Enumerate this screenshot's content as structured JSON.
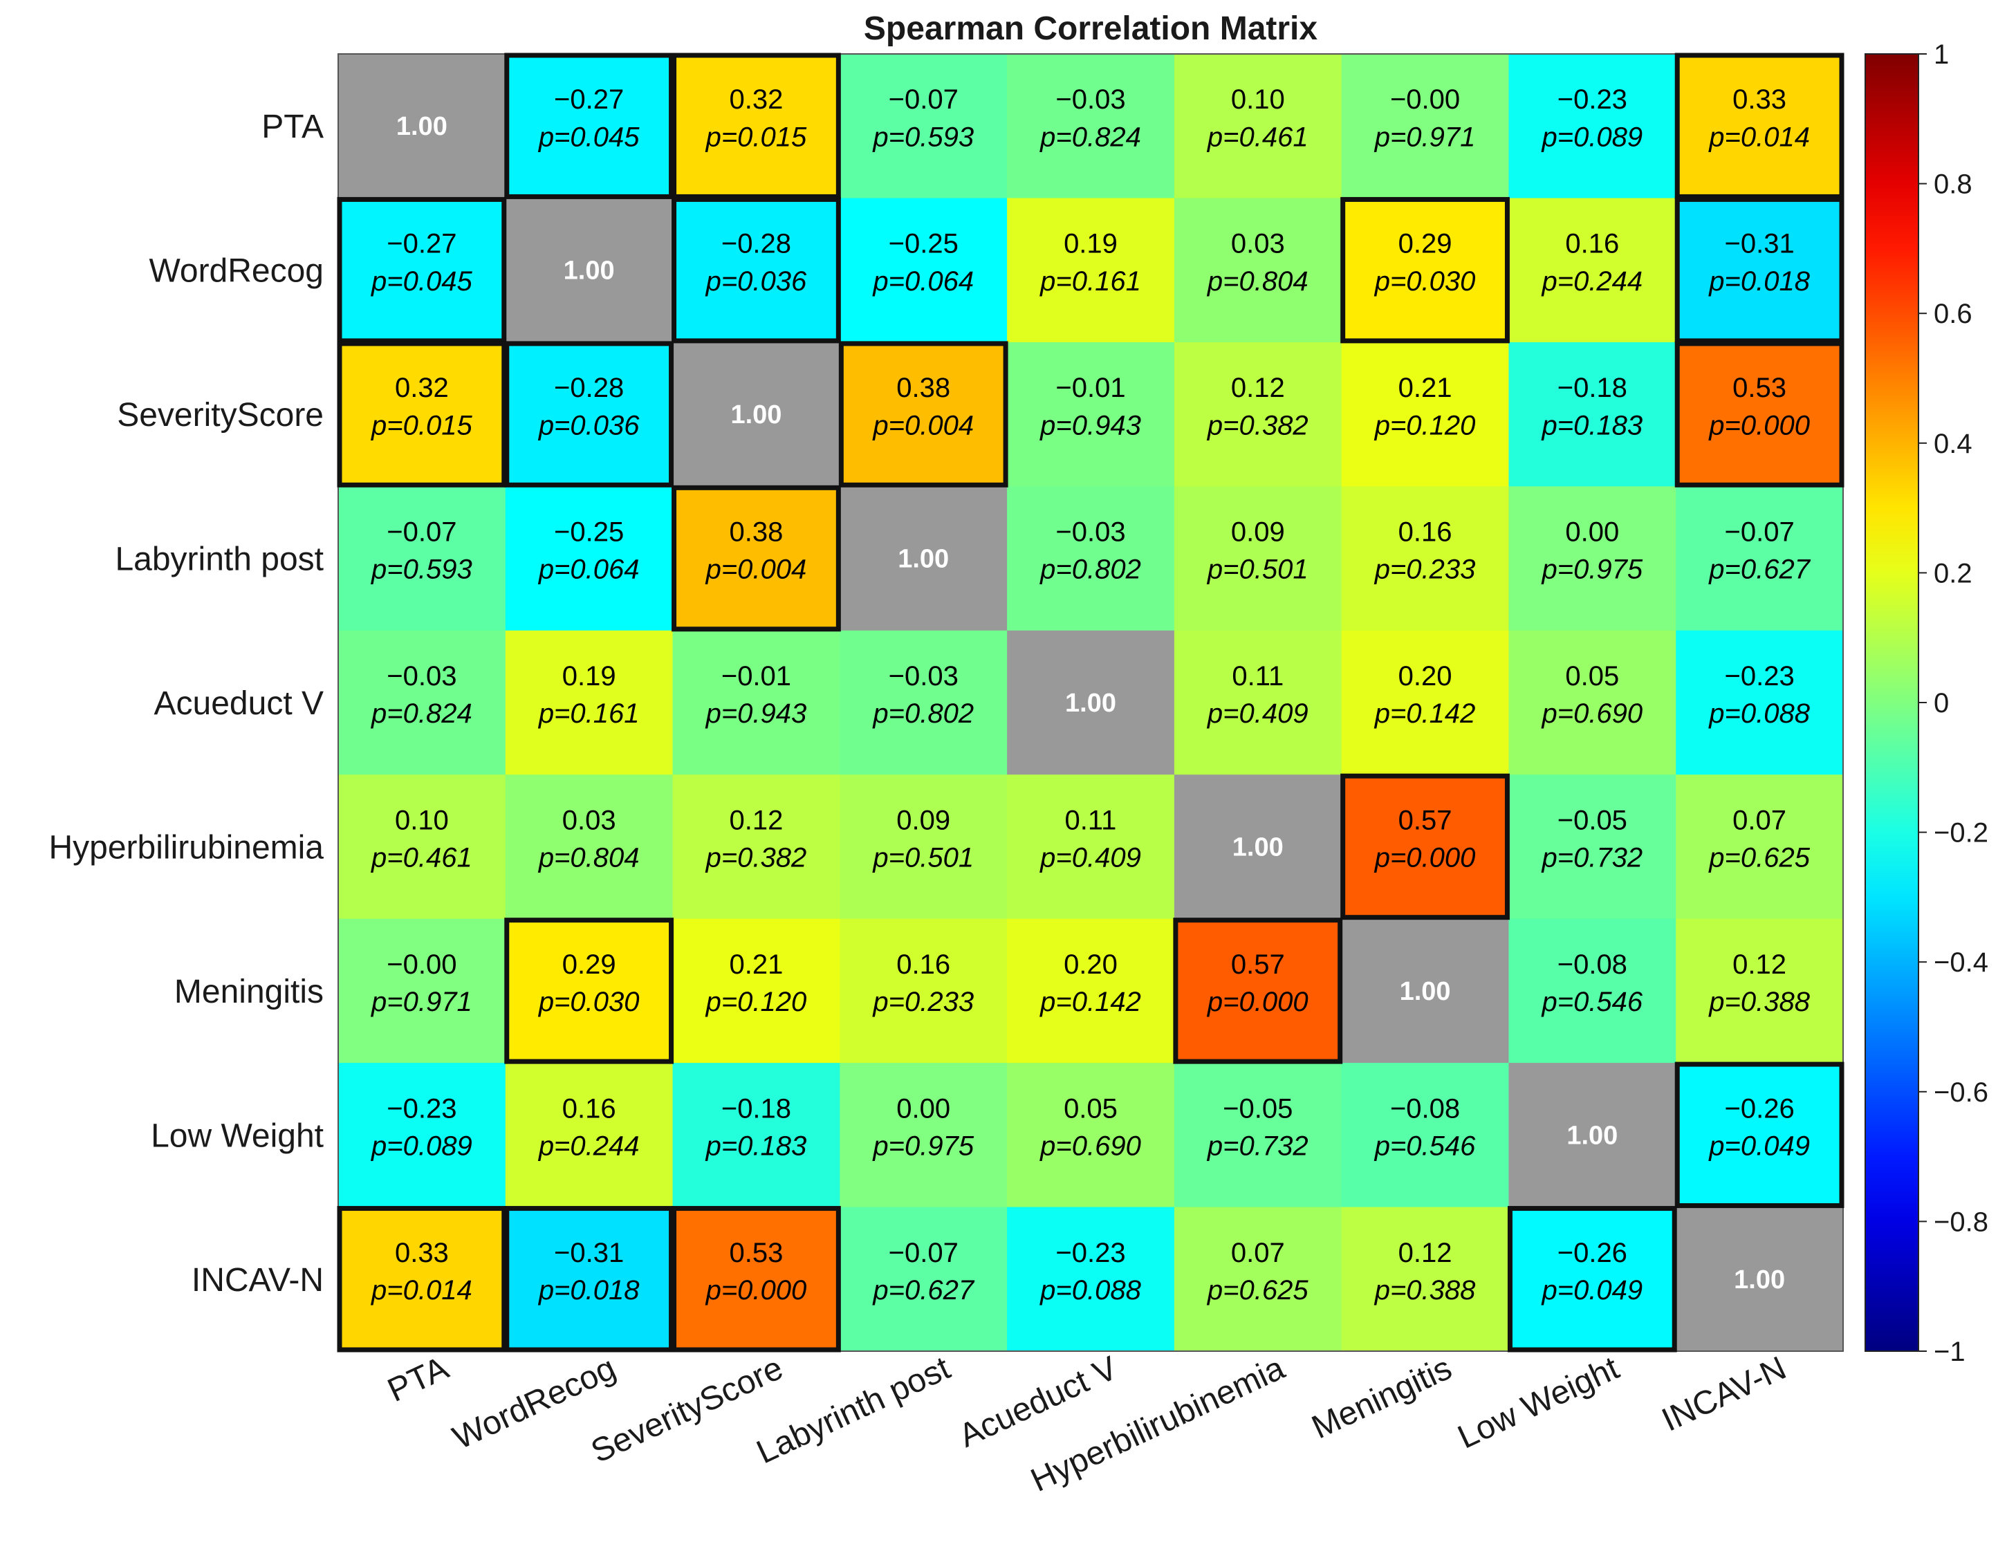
{
  "chart_data": {
    "type": "heatmap",
    "title": "Spearman Correlation Matrix",
    "labels": [
      "PTA",
      "WordRecog",
      "SeverityScore",
      "Labyrinth post",
      "Acueduct V",
      "Hyperbilirubinemia",
      "Meningitis",
      "Low Weight",
      "INCAV-N"
    ],
    "r_text": [
      [
        "1.00",
        "−0.27",
        "0.32",
        "−0.07",
        "−0.03",
        "0.10",
        "−0.00",
        "−0.23",
        "0.33"
      ],
      [
        "−0.27",
        "1.00",
        "−0.28",
        "−0.25",
        "0.19",
        "0.03",
        "0.29",
        "0.16",
        "−0.31"
      ],
      [
        "0.32",
        "−0.28",
        "1.00",
        "0.38",
        "−0.01",
        "0.12",
        "0.21",
        "−0.18",
        "0.53"
      ],
      [
        "−0.07",
        "−0.25",
        "0.38",
        "1.00",
        "−0.03",
        "0.09",
        "0.16",
        "0.00",
        "−0.07"
      ],
      [
        "−0.03",
        "0.19",
        "−0.01",
        "−0.03",
        "1.00",
        "0.11",
        "0.20",
        "0.05",
        "−0.23"
      ],
      [
        "0.10",
        "0.03",
        "0.12",
        "0.09",
        "0.11",
        "1.00",
        "0.57",
        "−0.05",
        "0.07"
      ],
      [
        "−0.00",
        "0.29",
        "0.21",
        "0.16",
        "0.20",
        "0.57",
        "1.00",
        "−0.08",
        "0.12"
      ],
      [
        "−0.23",
        "0.16",
        "−0.18",
        "0.00",
        "0.05",
        "−0.05",
        "−0.08",
        "1.00",
        "−0.26"
      ],
      [
        "0.33",
        "−0.31",
        "0.53",
        "−0.07",
        "−0.23",
        "0.07",
        "0.12",
        "−0.26",
        "1.00"
      ]
    ],
    "p_text": [
      [
        "",
        "p=0.045",
        "p=0.015",
        "p=0.593",
        "p=0.824",
        "p=0.461",
        "p=0.971",
        "p=0.089",
        "p=0.014"
      ],
      [
        "p=0.045",
        "",
        "p=0.036",
        "p=0.064",
        "p=0.161",
        "p=0.804",
        "p=0.030",
        "p=0.244",
        "p=0.018"
      ],
      [
        "p=0.015",
        "p=0.036",
        "",
        "p=0.004",
        "p=0.943",
        "p=0.382",
        "p=0.120",
        "p=0.183",
        "p=0.000"
      ],
      [
        "p=0.593",
        "p=0.064",
        "p=0.004",
        "",
        "p=0.802",
        "p=0.501",
        "p=0.233",
        "p=0.975",
        "p=0.627"
      ],
      [
        "p=0.824",
        "p=0.161",
        "p=0.943",
        "p=0.802",
        "",
        "p=0.409",
        "p=0.142",
        "p=0.690",
        "p=0.088"
      ],
      [
        "p=0.461",
        "p=0.804",
        "p=0.382",
        "p=0.501",
        "p=0.409",
        "",
        "p=0.000",
        "p=0.732",
        "p=0.625"
      ],
      [
        "p=0.971",
        "p=0.030",
        "p=0.120",
        "p=0.233",
        "p=0.142",
        "p=0.000",
        "",
        "p=0.546",
        "p=0.388"
      ],
      [
        "p=0.089",
        "p=0.244",
        "p=0.183",
        "p=0.975",
        "p=0.690",
        "p=0.732",
        "p=0.546",
        "",
        "p=0.049"
      ],
      [
        "p=0.014",
        "p=0.018",
        "p=0.000",
        "p=0.627",
        "p=0.088",
        "p=0.625",
        "p=0.388",
        "p=0.049",
        ""
      ]
    ],
    "colorbar": {
      "range": [
        -1,
        1
      ],
      "ticks": [
        1,
        0.8,
        0.6,
        0.4,
        0.2,
        0,
        -0.2,
        -0.4,
        -0.6,
        -0.8,
        -1
      ],
      "tick_labels": [
        "1",
        "0.8",
        "0.6",
        "0.4",
        "0.2",
        "0",
        "−0.2",
        "−0.4",
        "−0.6",
        "−0.8",
        "−1"
      ],
      "colormap": "jet"
    },
    "significance_threshold": 0.05,
    "highlight": "cells with p < 0.05 outlined in bold black",
    "diagonal_color": "#999999",
    "highlight_color": "#111111"
  }
}
